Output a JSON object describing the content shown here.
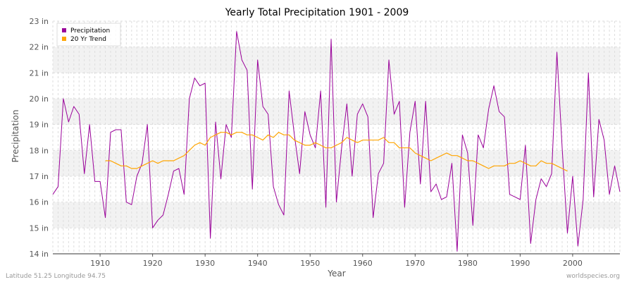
{
  "chart_data": {
    "type": "line",
    "title": "Yearly Total Precipitation 1901 - 2009",
    "xlabel": "Year",
    "ylabel": "Precipitation",
    "xlim": [
      1901,
      2009
    ],
    "ylim": [
      14,
      23
    ],
    "x_ticks": [
      1910,
      1920,
      1930,
      1940,
      1950,
      1960,
      1970,
      1980,
      1990,
      2000
    ],
    "y_ticks": [
      14,
      15,
      16,
      17,
      18,
      19,
      20,
      21,
      22,
      23
    ],
    "y_tick_labels": [
      "14 in",
      "15 in",
      "16 in",
      "17 in",
      "18 in",
      "19 in",
      "20 in",
      "21 in",
      "22 in",
      "23 in"
    ],
    "grid": true,
    "legend_position": "top-left",
    "series": [
      {
        "name": "Precipitation",
        "color": "#990099",
        "start_year": 1901,
        "values": [
          16.3,
          16.6,
          20.0,
          19.1,
          19.7,
          19.4,
          17.1,
          19.0,
          16.8,
          16.8,
          15.4,
          18.7,
          18.8,
          18.8,
          16.0,
          15.9,
          17.0,
          17.5,
          19.0,
          15.0,
          15.3,
          15.5,
          16.3,
          17.2,
          17.3,
          16.3,
          20.0,
          20.8,
          20.5,
          20.6,
          14.6,
          19.1,
          16.9,
          19.0,
          18.5,
          22.6,
          21.5,
          21.1,
          16.5,
          21.5,
          19.7,
          19.4,
          16.6,
          15.9,
          15.5,
          20.3,
          18.6,
          17.1,
          19.5,
          18.6,
          18.1,
          20.3,
          15.8,
          22.3,
          16.0,
          18.1,
          19.8,
          17.0,
          19.4,
          19.8,
          19.3,
          15.4,
          17.1,
          17.5,
          21.5,
          19.4,
          19.9,
          15.8,
          18.7,
          19.9,
          16.7,
          19.9,
          16.4,
          16.7,
          16.1,
          16.2,
          17.5,
          14.1,
          18.6,
          17.9,
          15.1,
          18.6,
          18.1,
          19.6,
          20.5,
          19.5,
          19.3,
          16.3,
          16.2,
          16.1,
          18.2,
          14.4,
          16.1,
          16.9,
          16.6,
          17.1,
          21.8,
          18.1,
          14.8,
          17.0,
          14.3,
          16.1,
          21.0,
          16.2,
          19.2,
          18.4,
          16.3,
          17.4,
          16.4
        ]
      },
      {
        "name": "20 Yr Trend",
        "color": "#ffa500",
        "start_year": 1911,
        "values": [
          17.6,
          17.6,
          17.5,
          17.4,
          17.4,
          17.3,
          17.3,
          17.4,
          17.5,
          17.6,
          17.5,
          17.6,
          17.6,
          17.6,
          17.7,
          17.8,
          18.0,
          18.2,
          18.3,
          18.2,
          18.5,
          18.6,
          18.7,
          18.7,
          18.6,
          18.7,
          18.7,
          18.6,
          18.6,
          18.5,
          18.4,
          18.6,
          18.5,
          18.7,
          18.6,
          18.6,
          18.4,
          18.3,
          18.2,
          18.2,
          18.3,
          18.2,
          18.1,
          18.1,
          18.2,
          18.3,
          18.5,
          18.4,
          18.3,
          18.4,
          18.4,
          18.4,
          18.4,
          18.5,
          18.3,
          18.3,
          18.1,
          18.1,
          18.1,
          17.9,
          17.8,
          17.7,
          17.6,
          17.7,
          17.8,
          17.9,
          17.8,
          17.8,
          17.7,
          17.6,
          17.6,
          17.5,
          17.4,
          17.3,
          17.4,
          17.4,
          17.4,
          17.5,
          17.5,
          17.6,
          17.5,
          17.4,
          17.4,
          17.6,
          17.5,
          17.5,
          17.4,
          17.3,
          17.2
        ]
      }
    ]
  },
  "footer": {
    "left": "Latitude 51.25 Longitude 94.75",
    "right": "worldspecies.org"
  }
}
